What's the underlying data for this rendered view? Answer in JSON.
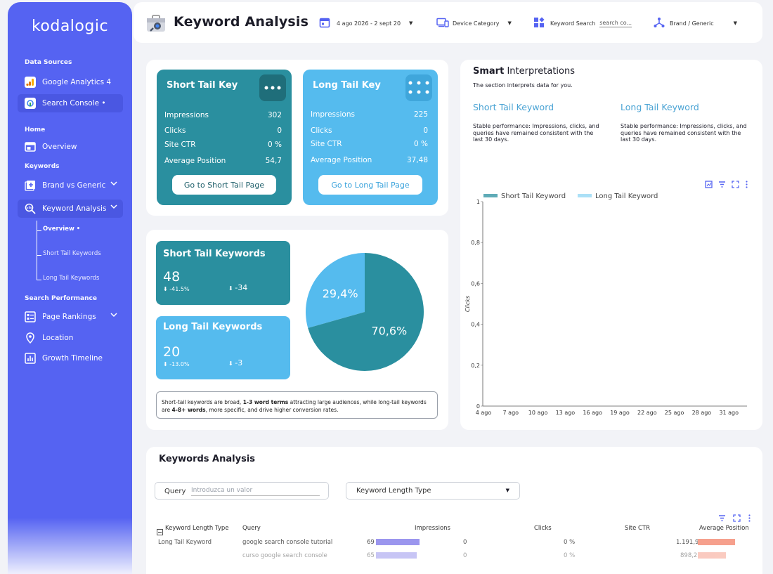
{
  "sidebar": {
    "logo": "kodalogic",
    "sections": {
      "data_sources": "Data Sources",
      "home": "Home",
      "keywords": "Keywords",
      "search_performance": "Search Performance"
    },
    "items": {
      "ga4": "Google Analytics 4",
      "search_console": "Search Console •",
      "overview": "Overview",
      "brand_vs_generic": "Brand vs Generic",
      "keyword_analysis": "Keyword Analysis",
      "page_rankings": "Page Rankings",
      "location": "Location",
      "growth_timeline": "Growth Timeline"
    },
    "subitems": {
      "overview": "Overview •",
      "short_tail": "Short Tail Keywords",
      "long_tail": "Long Tail Keywords"
    }
  },
  "header": {
    "title": "Keyword Analysis",
    "date_range": "4 ago 2026 - 2 sept 20",
    "device_category": "Device Category",
    "keyword_search_label": "Keyword Search",
    "keyword_search_placeholder": "search co...",
    "brand_generic": "Brand / Generic"
  },
  "short_tail_card": {
    "title": "Short Tail Key",
    "rows": [
      {
        "label": "Impressions",
        "value": "302"
      },
      {
        "label": "Clicks",
        "value": "0"
      },
      {
        "label": "Site CTR",
        "value": "0 %"
      },
      {
        "label": "Average Position",
        "value": "54,7"
      }
    ],
    "button": "Go to Short Tail Page"
  },
  "long_tail_card": {
    "title": "Long Tail Key",
    "rows": [
      {
        "label": "Impressions",
        "value": "225"
      },
      {
        "label": "Clicks",
        "value": "0"
      },
      {
        "label": "Site CTR",
        "value": "0 %"
      },
      {
        "label": "Average Position",
        "value": "37,48"
      }
    ],
    "button": "Go to Long Tail Page"
  },
  "short_tail_stat": {
    "title": "Short Tail Keywords",
    "value": "48",
    "pct": "-41.5%",
    "delta": "-34"
  },
  "long_tail_stat": {
    "title": "Long Tail Keywords",
    "value": "20",
    "pct": "-13.0%",
    "delta": "-3"
  },
  "note": {
    "part1": "Short-tail keywords are broad, ",
    "bold1": "1-3 word terms",
    "part2": " attracting large audiences, while long-tail keywords are ",
    "bold2": "4-8+ words",
    "part3": ", more specific, and drive higher conversion rates."
  },
  "smart": {
    "title_bold": "Smart",
    "title_rest": " Interpretations",
    "subtitle": "The section interprets data for you.",
    "short_heading": "Short Tail Keyword",
    "short_text": "Stable performance: Impressions, clicks, and queries have remained consistent with the last 30 days.",
    "long_heading": "Long Tail Keyword",
    "long_text": "Stable performance: Impressions, clicks, and queries have remained consistent with the last 30 days."
  },
  "colors": {
    "primary": "#5563f2",
    "short_tail": "#2a8f9f",
    "long_tail": "#55bbee",
    "bar_purple": "#9b96ee",
    "bar_salmon": "#f6a08d"
  },
  "chart_data": [
    {
      "type": "pie",
      "labels": [
        "Long Tail Keywords",
        "Short Tail Keywords"
      ],
      "values": [
        29.4,
        70.6
      ],
      "display_labels": [
        "29,4%",
        "70,6%"
      ],
      "colors": [
        "#55bbee",
        "#2a8f9f"
      ]
    },
    {
      "type": "line",
      "series": [
        {
          "name": "Short Tail Keyword",
          "color": "#2a8f9f"
        },
        {
          "name": "Long Tail Keyword",
          "color": "#8fd5f4"
        }
      ],
      "x_ticks": [
        "4 ago",
        "7 ago",
        "10 ago",
        "13 ago",
        "16 ago",
        "19 ago",
        "22 ago",
        "25 ago",
        "28 ago",
        "31 ago"
      ],
      "y_ticks": [
        "1",
        "0,8",
        "0,6",
        "0,4",
        "0,2",
        "0"
      ],
      "ylabel": "Clicks",
      "ylim": [
        0,
        1
      ]
    }
  ],
  "table": {
    "title": "Keywords Analysis",
    "query_filter_label": "Query",
    "query_filter_placeholder": "Introduzca un valor",
    "length_type_dropdown": "Keyword Length Type",
    "headers": [
      "Keyword Length Type",
      "Query",
      "Impressions",
      "Clicks",
      "Site CTR",
      "Average Position"
    ],
    "rows": [
      {
        "type": "Long Tail Keyword",
        "query": "google search console tutorial",
        "impressions": "69",
        "impressions_frac": 1.0,
        "clicks": "0",
        "ctr": "0 %",
        "position": "1.191,93",
        "position_frac": 1.0
      },
      {
        "type": "",
        "query": "curso google search console",
        "impressions": "65",
        "impressions_frac": 0.94,
        "clicks": "0",
        "ctr": "0 %",
        "position": "898,2",
        "position_frac": 0.75
      }
    ]
  }
}
